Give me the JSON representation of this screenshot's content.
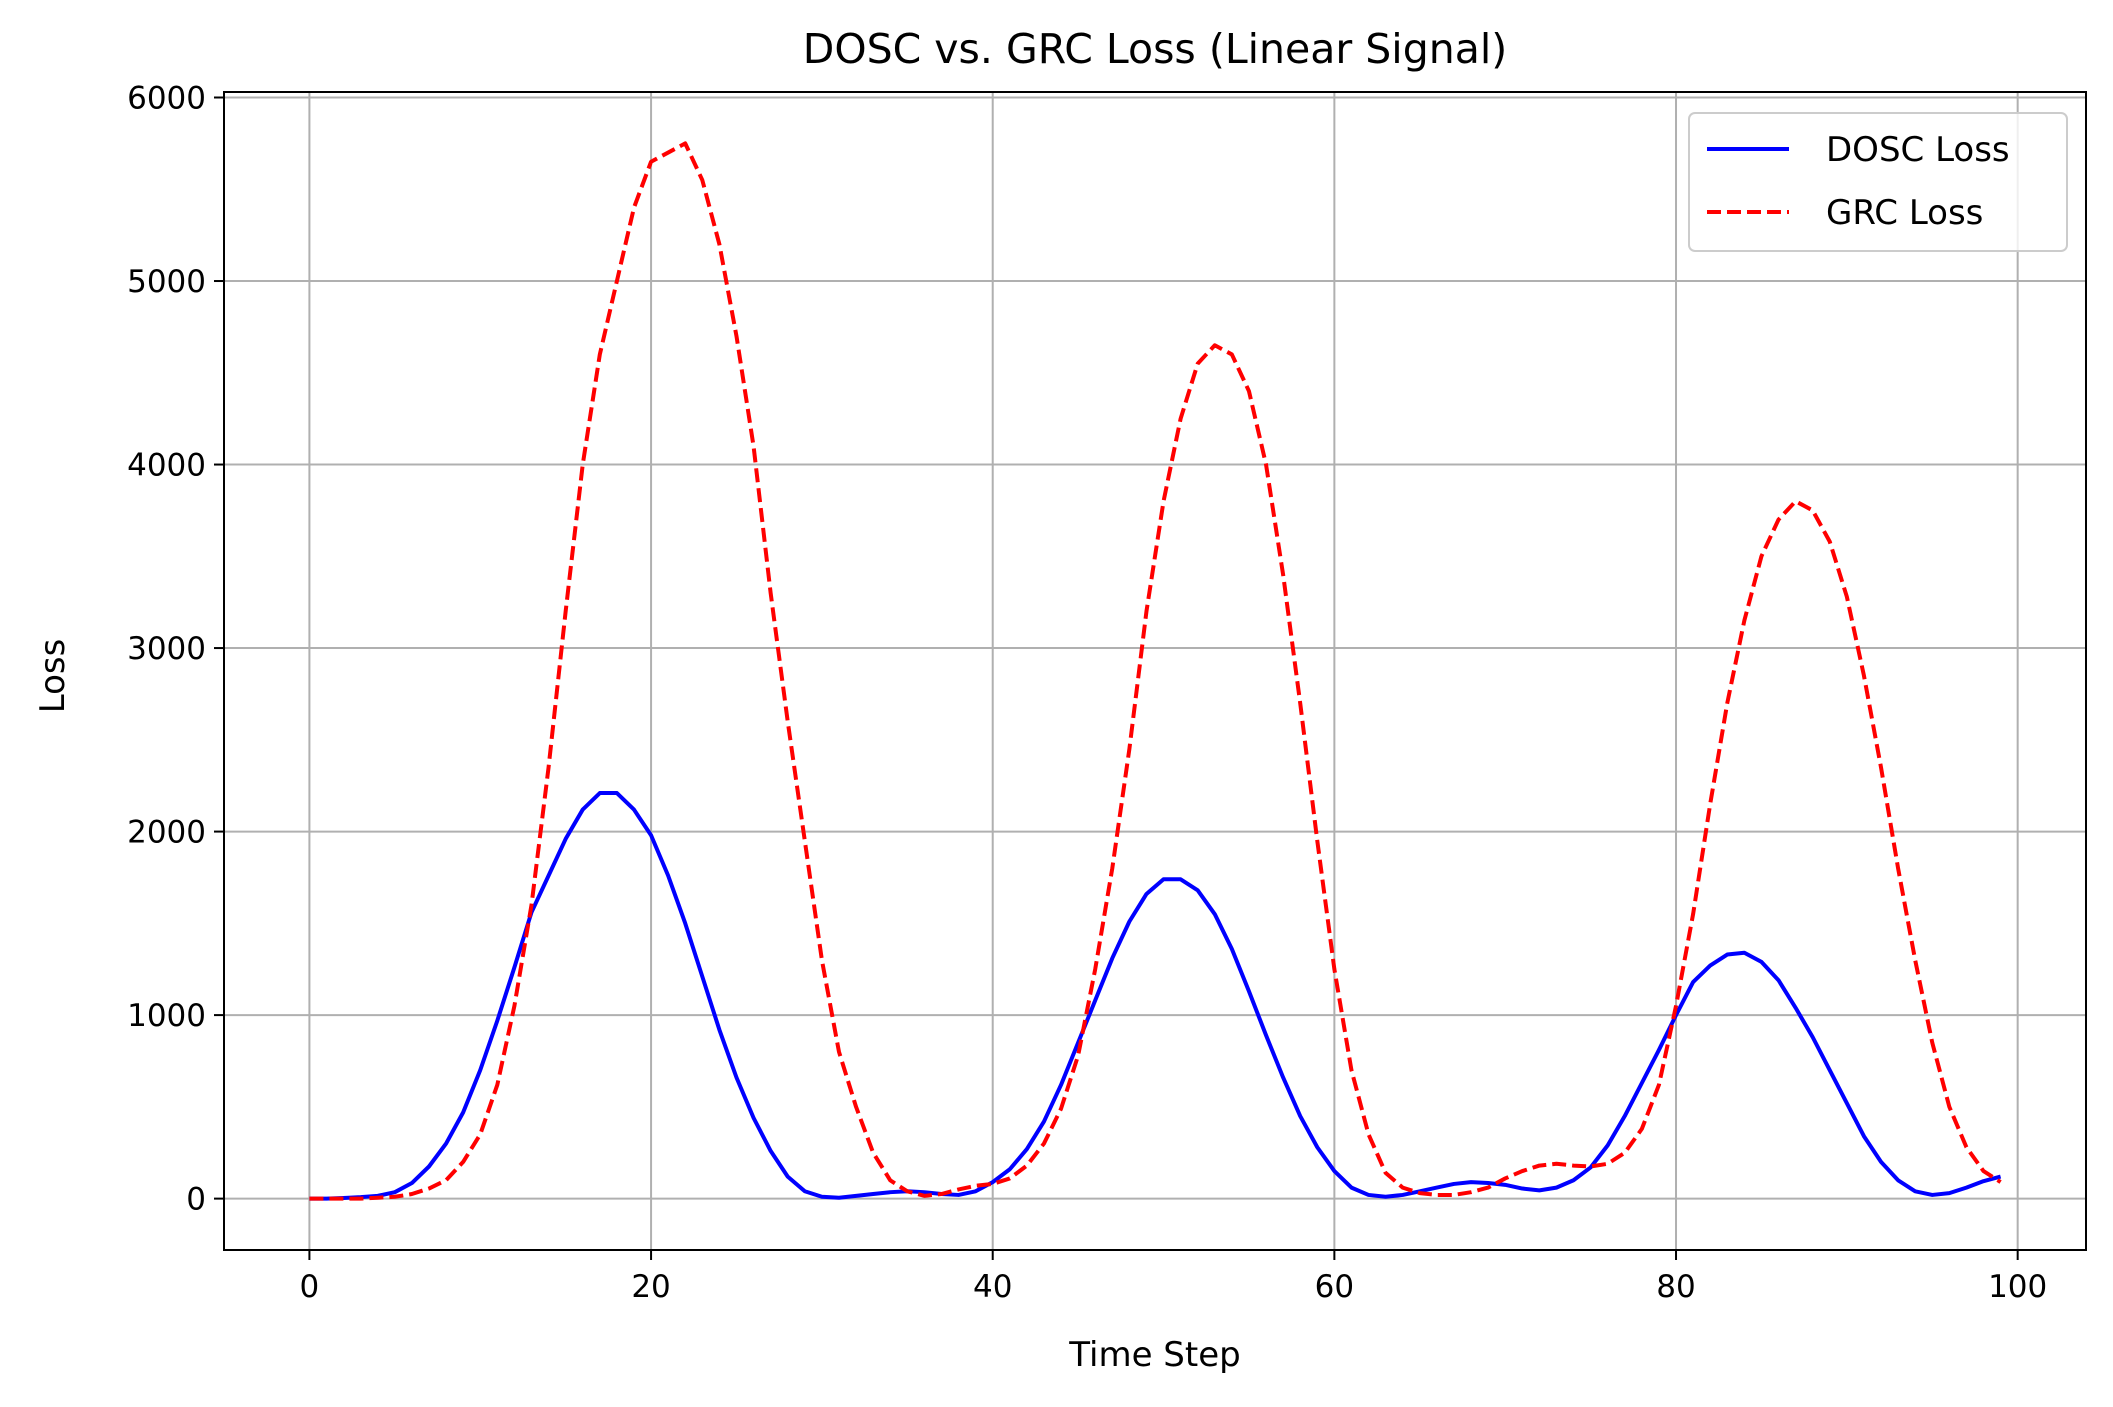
{
  "chart_data": {
    "type": "line",
    "title": "DOSC vs. GRC Loss (Linear Signal)",
    "xlabel": "Time Step",
    "ylabel": "Loss",
    "xlim": [
      -5,
      104
    ],
    "ylim": [
      -280,
      6030
    ],
    "xticks": [
      0,
      20,
      40,
      60,
      80,
      100
    ],
    "yticks": [
      0,
      1000,
      2000,
      3000,
      4000,
      5000,
      6000
    ],
    "grid": true,
    "legend_position": "top-right",
    "series": [
      {
        "name": "DOSC Loss",
        "color": "#0000ff",
        "style": "solid",
        "x": [
          0,
          1,
          2,
          3,
          4,
          5,
          6,
          7,
          8,
          9,
          10,
          11,
          12,
          13,
          14,
          15,
          16,
          17,
          18,
          19,
          20,
          21,
          22,
          23,
          24,
          25,
          26,
          27,
          28,
          29,
          30,
          31,
          32,
          33,
          34,
          35,
          36,
          37,
          38,
          39,
          40,
          41,
          42,
          43,
          44,
          45,
          46,
          47,
          48,
          49,
          50,
          51,
          52,
          53,
          54,
          55,
          56,
          57,
          58,
          59,
          60,
          61,
          62,
          63,
          64,
          65,
          66,
          67,
          68,
          69,
          70,
          71,
          72,
          73,
          74,
          75,
          76,
          77,
          78,
          79,
          80,
          81,
          82,
          83,
          84,
          85,
          86,
          87,
          88,
          89,
          90,
          91,
          92,
          93,
          94,
          95,
          96,
          97,
          98,
          99
        ],
        "values": [
          0,
          0,
          3,
          8,
          15,
          35,
          85,
          175,
          300,
          470,
          700,
          970,
          1260,
          1560,
          1760,
          1960,
          2120,
          2210,
          2210,
          2120,
          1980,
          1760,
          1500,
          1210,
          920,
          660,
          440,
          260,
          120,
          40,
          10,
          5,
          15,
          25,
          35,
          40,
          35,
          25,
          20,
          40,
          90,
          160,
          270,
          420,
          620,
          850,
          1080,
          1310,
          1510,
          1660,
          1740,
          1740,
          1680,
          1550,
          1360,
          1130,
          890,
          660,
          450,
          280,
          150,
          60,
          20,
          10,
          20,
          40,
          60,
          80,
          90,
          85,
          75,
          55,
          45,
          60,
          100,
          170,
          290,
          450,
          630,
          810,
          1000,
          1180,
          1270,
          1330,
          1340,
          1290,
          1190,
          1040,
          880,
          700,
          520,
          340,
          200,
          100,
          40,
          20,
          30,
          60,
          95,
          120
        ]
      },
      {
        "name": "GRC Loss",
        "color": "#ff0000",
        "style": "dashed",
        "x": [
          0,
          1,
          2,
          3,
          4,
          5,
          6,
          7,
          8,
          9,
          10,
          11,
          12,
          13,
          14,
          15,
          16,
          17,
          18,
          19,
          20,
          21,
          22,
          23,
          24,
          25,
          26,
          27,
          28,
          29,
          30,
          31,
          32,
          33,
          34,
          35,
          36,
          37,
          38,
          39,
          40,
          41,
          42,
          43,
          44,
          45,
          46,
          47,
          48,
          49,
          50,
          51,
          52,
          53,
          54,
          55,
          56,
          57,
          58,
          59,
          60,
          61,
          62,
          63,
          64,
          65,
          66,
          67,
          68,
          69,
          70,
          71,
          72,
          73,
          74,
          75,
          76,
          77,
          78,
          79,
          80,
          81,
          82,
          83,
          84,
          85,
          86,
          87,
          88,
          89,
          90,
          91,
          92,
          93,
          94,
          95,
          96,
          97,
          98,
          99
        ],
        "values": [
          0,
          0,
          0,
          0,
          5,
          10,
          25,
          55,
          100,
          200,
          350,
          620,
          1050,
          1600,
          2350,
          3200,
          4000,
          4600,
          5000,
          5400,
          5650,
          5700,
          5750,
          5550,
          5200,
          4700,
          4100,
          3300,
          2600,
          1950,
          1300,
          800,
          500,
          250,
          100,
          40,
          15,
          25,
          50,
          70,
          80,
          110,
          180,
          300,
          490,
          780,
          1250,
          1800,
          2450,
          3200,
          3800,
          4250,
          4550,
          4650,
          4600,
          4400,
          4000,
          3400,
          2700,
          1950,
          1250,
          700,
          350,
          140,
          60,
          30,
          20,
          20,
          35,
          60,
          110,
          150,
          180,
          190,
          180,
          175,
          190,
          250,
          380,
          620,
          1050,
          1550,
          2150,
          2700,
          3150,
          3500,
          3700,
          3800,
          3750,
          3580,
          3280,
          2850,
          2350,
          1800,
          1300,
          850,
          500,
          280,
          150,
          90
        ]
      }
    ]
  }
}
